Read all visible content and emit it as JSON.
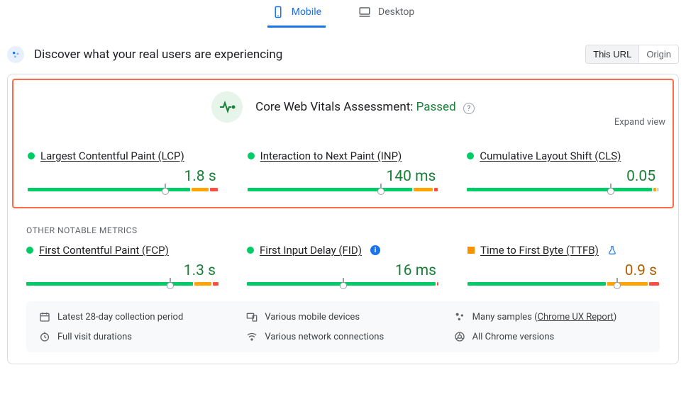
{
  "tabs": {
    "mobile": "Mobile",
    "desktop": "Desktop",
    "active": "mobile"
  },
  "header": {
    "title": "Discover what your real users are experiencing",
    "scope_this_url": "This URL",
    "scope_origin": "Origin"
  },
  "assessment": {
    "label_prefix": "Core Web Vitals Assessment: ",
    "status": "Passed",
    "expand": "Expand view"
  },
  "core_metrics": [
    {
      "name": "Largest Contentful Paint (LCP)",
      "value": "1.8 s",
      "status": "good",
      "value_color": "#188038",
      "segments": [
        {
          "color": "#00cc66",
          "pct": 85
        },
        {
          "color": "#ffa400",
          "pct": 9
        },
        {
          "color": "#ff4e42",
          "pct": 4
        }
      ],
      "marker_pct": 72
    },
    {
      "name": "Interaction to Next Paint (INP)",
      "value": "140 ms",
      "status": "good",
      "value_color": "#188038",
      "segments": [
        {
          "color": "#00cc66",
          "pct": 86
        },
        {
          "color": "#ffa400",
          "pct": 10
        },
        {
          "color": "#ff4e42",
          "pct": 2
        }
      ],
      "marker_pct": 70
    },
    {
      "name": "Cumulative Layout Shift (CLS)",
      "value": "0.05",
      "status": "good",
      "value_color": "#188038",
      "segments": [
        {
          "color": "#00cc66",
          "pct": 97
        },
        {
          "color": "#ffa400",
          "pct": 1.5
        },
        {
          "color": "#ff4e42",
          "pct": 0.5
        }
      ],
      "marker_pct": 75
    }
  ],
  "other_label": "OTHER NOTABLE METRICS",
  "other_metrics": [
    {
      "name": "First Contentful Paint (FCP)",
      "value": "1.3 s",
      "status": "good",
      "badge": null,
      "value_color": "#188038",
      "segments": [
        {
          "color": "#00cc66",
          "pct": 87
        },
        {
          "color": "#ffa400",
          "pct": 9
        },
        {
          "color": "#ff4e42",
          "pct": 3
        }
      ],
      "marker_pct": 75
    },
    {
      "name": "First Input Delay (FID)",
      "value": "16 ms",
      "status": "good",
      "badge": "info",
      "value_color": "#188038",
      "segments": [
        {
          "color": "#00cc66",
          "pct": 98
        },
        {
          "color": "#ff4e42",
          "pct": 1
        }
      ],
      "marker_pct": 50
    },
    {
      "name": "Time to First Byte (TTFB)",
      "value": "0.9 s",
      "status": "ni",
      "badge": "flask",
      "value_color": "#b06000",
      "segments": [
        {
          "color": "#00cc66",
          "pct": 72
        },
        {
          "color": "#ffa400",
          "pct": 21
        },
        {
          "color": "#ff4e42",
          "pct": 5
        }
      ],
      "marker_pct": 78
    }
  ],
  "footer": {
    "period": "Latest 28-day collection period",
    "devices": "Various mobile devices",
    "samples_prefix": "Many samples (",
    "samples_link": "Chrome UX Report",
    "samples_suffix": ")",
    "durations": "Full visit durations",
    "network": "Various network connections",
    "versions": "All Chrome versions"
  },
  "colors": {
    "good": "#00cc66",
    "ni": "#ffa400",
    "poor": "#ff4e42",
    "highlight_border": "#ff6b4a"
  }
}
